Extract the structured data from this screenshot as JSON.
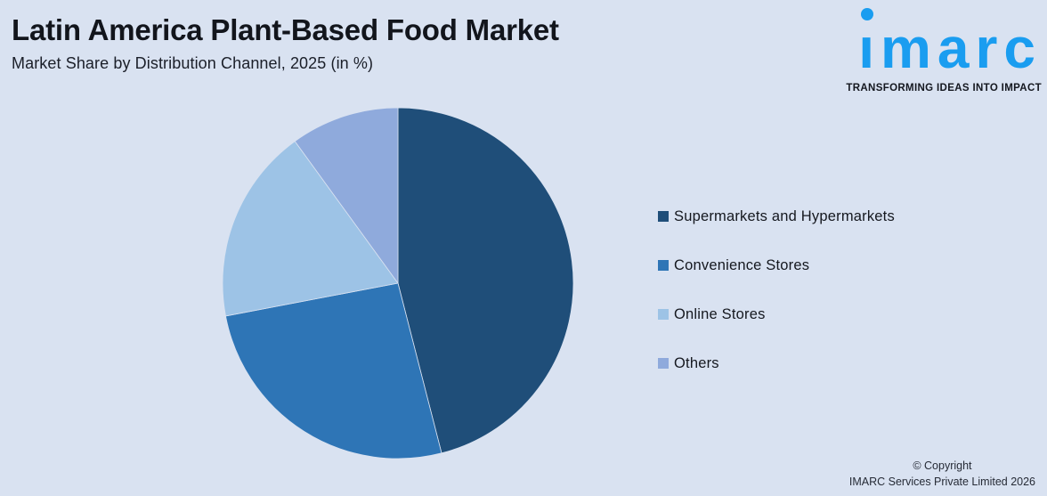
{
  "page": {
    "background_color": "#d9e2f1"
  },
  "header": {
    "title": "Latin America Plant-Based Food Market",
    "subtitle": "Market Share by Distribution Channel, 2025 (in %)"
  },
  "logo": {
    "wordmark": "imarc",
    "tagline": "TRANSFORMING IDEAS INTO IMPACT",
    "brand_color": "#1a9df0"
  },
  "chart_data": {
    "type": "pie",
    "title": "Latin America Plant-Based Food Market",
    "subtitle": "Market Share by Distribution Channel, 2025 (in %)",
    "unit": "%",
    "start_angle_deg": 0,
    "direction": "clockwise",
    "legend_position": "right",
    "slices": [
      {
        "label": "Supermarkets and Hypermarkets",
        "value": 46,
        "color": "#1f4e79"
      },
      {
        "label": "Convenience Stores",
        "value": 26,
        "color": "#2e75b6"
      },
      {
        "label": "Online Stores",
        "value": 18,
        "color": "#9dc3e6"
      },
      {
        "label": "Others",
        "value": 10,
        "color": "#8faadc"
      }
    ]
  },
  "footer": {
    "copyright_line1": "© Copyright",
    "copyright_line2": "IMARC Services Private Limited 2026"
  }
}
